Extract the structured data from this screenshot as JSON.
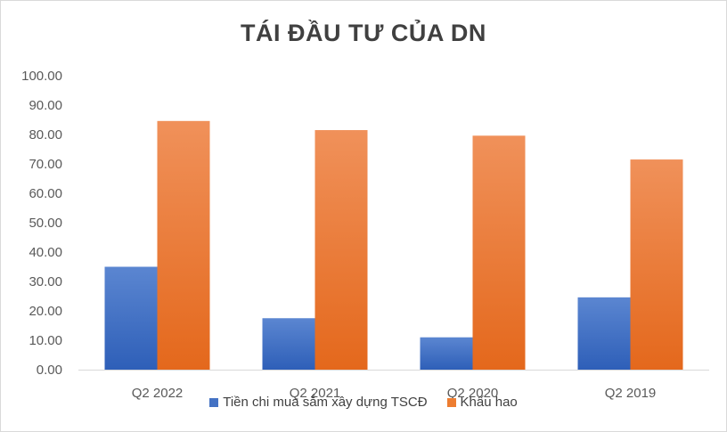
{
  "chart_data": {
    "type": "bar",
    "title": "TÁI ĐẦU TƯ CỦA DN",
    "categories": [
      "Q2 2022",
      "Q2 2021",
      "Q2 2020",
      "Q2 2019"
    ],
    "series": [
      {
        "name": "Tiền chi mua sắm xây dựng TSCĐ",
        "values": [
          35.0,
          17.5,
          11.0,
          24.6
        ],
        "color": "#4472C4"
      },
      {
        "name": "Khấu hao",
        "values": [
          84.6,
          81.5,
          79.6,
          71.5
        ],
        "color": "#ED7D31"
      }
    ],
    "ylim": [
      0,
      100
    ],
    "yticks": [
      "0.00",
      "10.00",
      "20.00",
      "30.00",
      "40.00",
      "50.00",
      "60.00",
      "70.00",
      "80.00",
      "90.00",
      "100.00"
    ],
    "grid": false,
    "legend": "bottom"
  }
}
